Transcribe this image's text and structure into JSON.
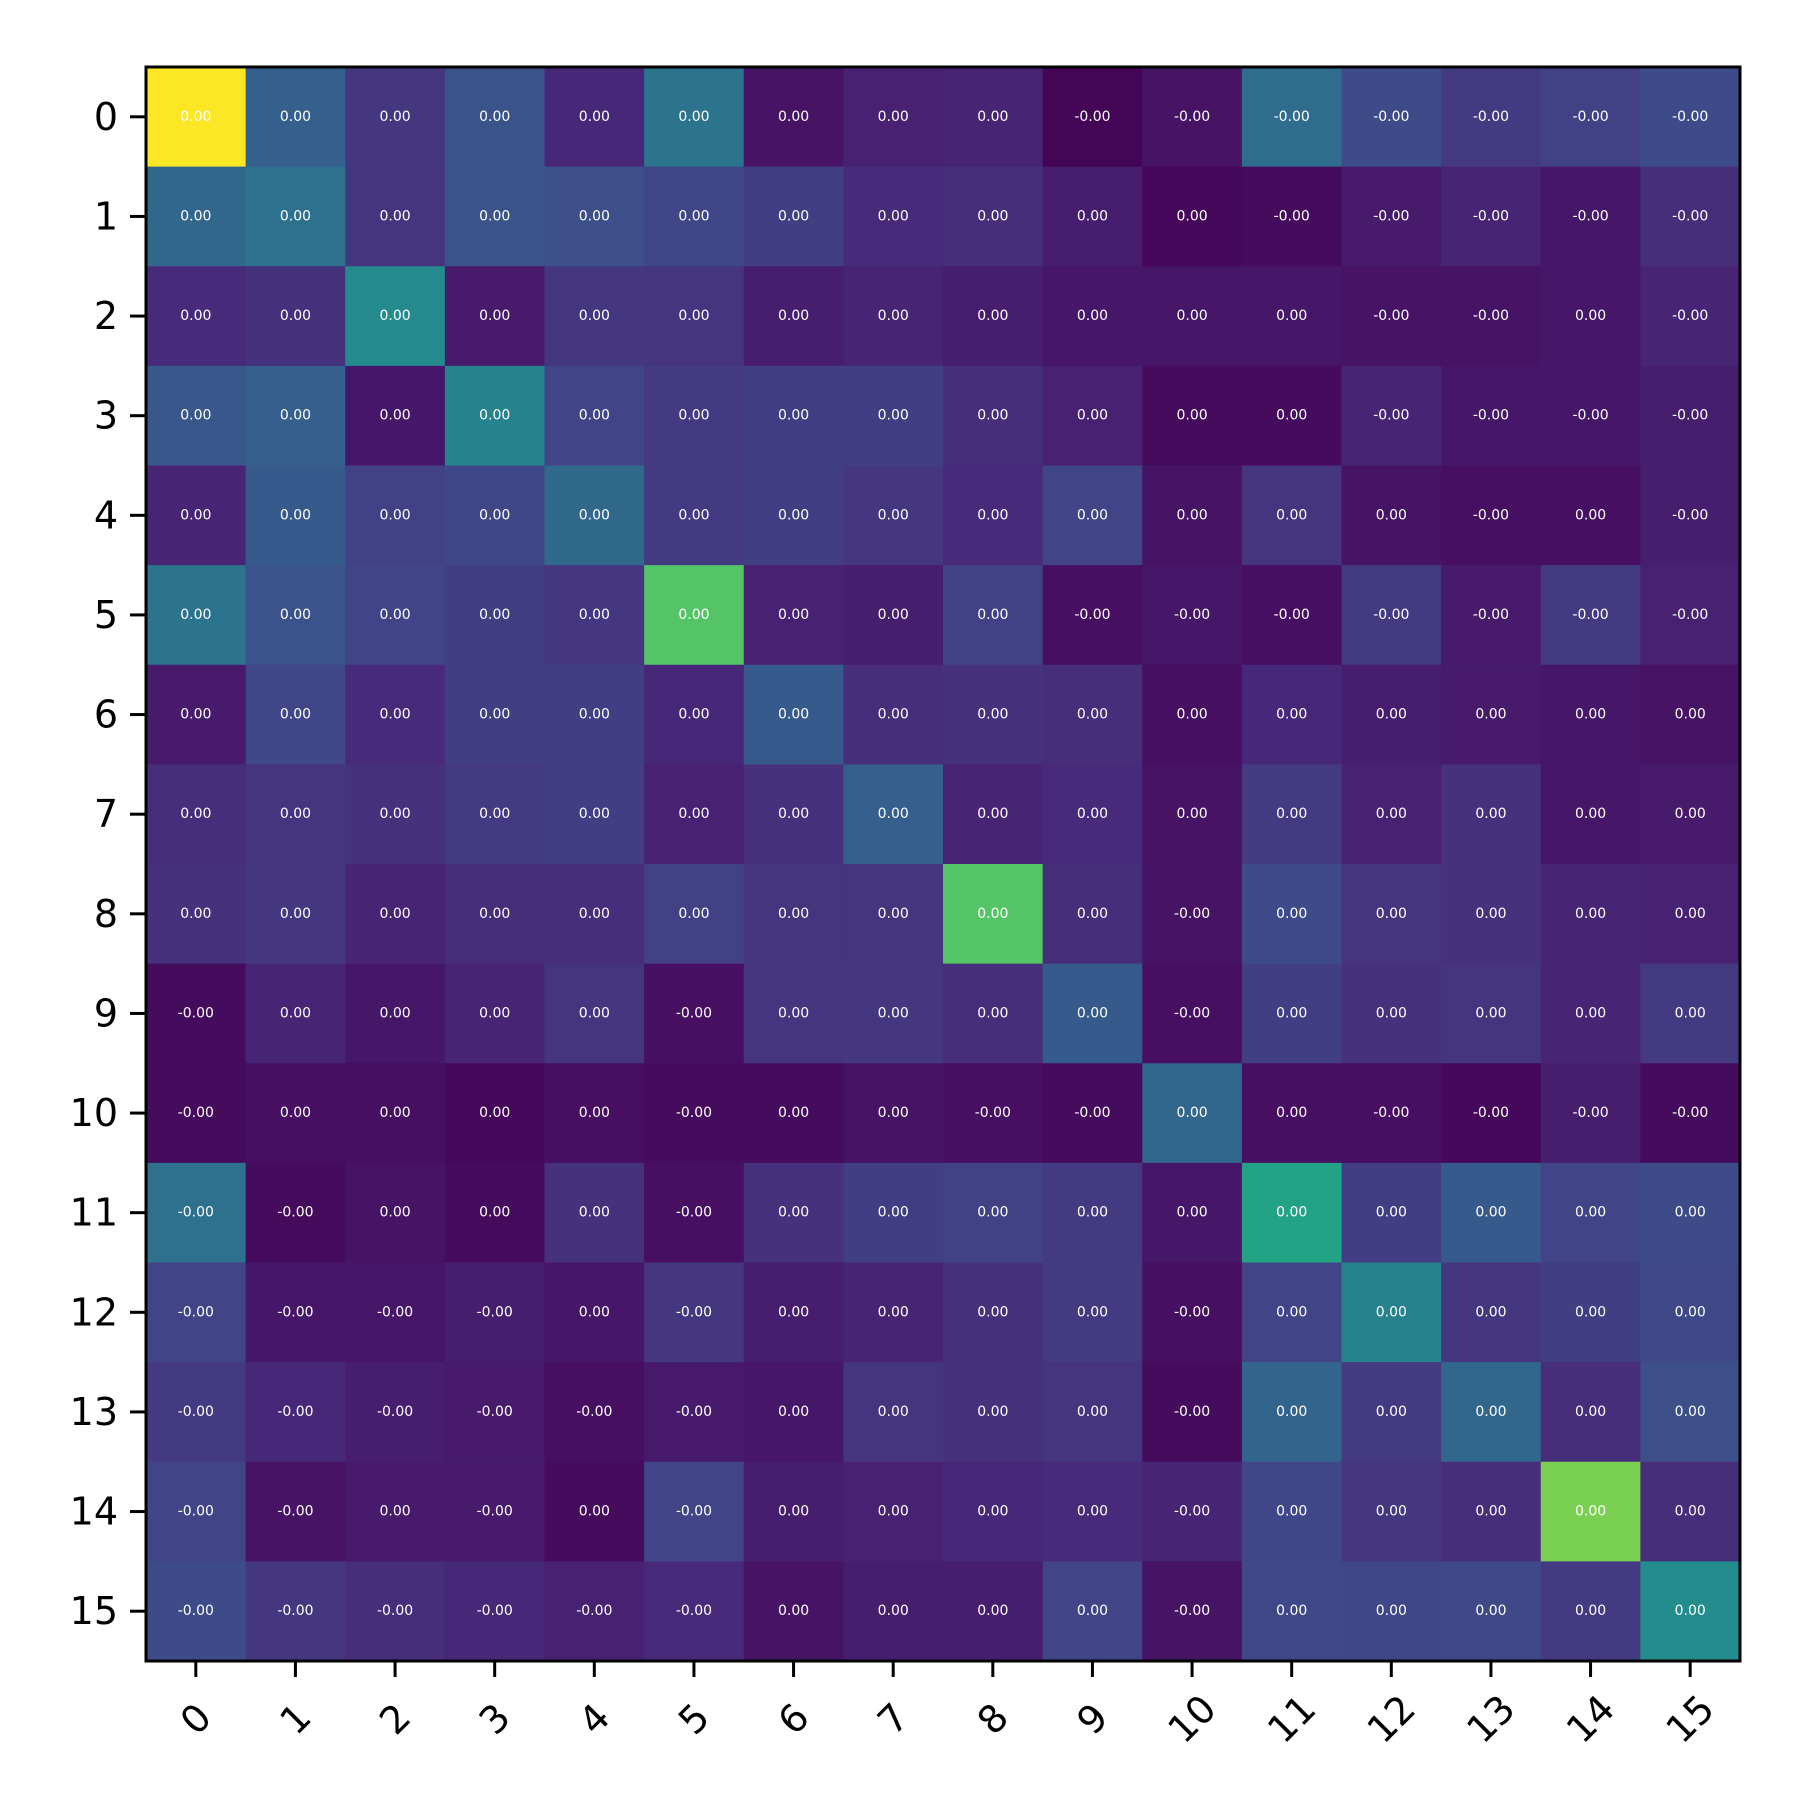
{
  "chart_data": {
    "type": "heatmap",
    "title": "",
    "xlabel": "",
    "ylabel": "",
    "x_ticks": [
      "0",
      "1",
      "2",
      "3",
      "4",
      "5",
      "6",
      "7",
      "8",
      "9",
      "10",
      "11",
      "12",
      "13",
      "14",
      "15"
    ],
    "y_ticks": [
      "0",
      "1",
      "2",
      "3",
      "4",
      "5",
      "6",
      "7",
      "8",
      "9",
      "10",
      "11",
      "12",
      "13",
      "14",
      "15"
    ],
    "colormap": "viridis",
    "grid": false,
    "cell_labels": [
      [
        "0.00",
        "0.00",
        "0.00",
        "0.00",
        "0.00",
        "0.00",
        "0.00",
        "0.00",
        "0.00",
        "-0.00",
        "-0.00",
        "-0.00",
        "-0.00",
        "-0.00",
        "-0.00",
        "-0.00"
      ],
      [
        "0.00",
        "0.00",
        "0.00",
        "0.00",
        "0.00",
        "0.00",
        "0.00",
        "0.00",
        "0.00",
        "0.00",
        "0.00",
        "-0.00",
        "-0.00",
        "-0.00",
        "-0.00",
        "-0.00"
      ],
      [
        "0.00",
        "0.00",
        "0.00",
        "0.00",
        "0.00",
        "0.00",
        "0.00",
        "0.00",
        "0.00",
        "0.00",
        "0.00",
        "0.00",
        "-0.00",
        "-0.00",
        "0.00",
        "-0.00"
      ],
      [
        "0.00",
        "0.00",
        "0.00",
        "0.00",
        "0.00",
        "0.00",
        "0.00",
        "0.00",
        "0.00",
        "0.00",
        "0.00",
        "0.00",
        "-0.00",
        "-0.00",
        "-0.00",
        "-0.00"
      ],
      [
        "0.00",
        "0.00",
        "0.00",
        "0.00",
        "0.00",
        "0.00",
        "0.00",
        "0.00",
        "0.00",
        "0.00",
        "0.00",
        "0.00",
        "0.00",
        "-0.00",
        "0.00",
        "-0.00"
      ],
      [
        "0.00",
        "0.00",
        "0.00",
        "0.00",
        "0.00",
        "0.00",
        "0.00",
        "0.00",
        "0.00",
        "-0.00",
        "-0.00",
        "-0.00",
        "-0.00",
        "-0.00",
        "-0.00",
        "-0.00"
      ],
      [
        "0.00",
        "0.00",
        "0.00",
        "0.00",
        "0.00",
        "0.00",
        "0.00",
        "0.00",
        "0.00",
        "0.00",
        "0.00",
        "0.00",
        "0.00",
        "0.00",
        "0.00",
        "0.00"
      ],
      [
        "0.00",
        "0.00",
        "0.00",
        "0.00",
        "0.00",
        "0.00",
        "0.00",
        "0.00",
        "0.00",
        "0.00",
        "0.00",
        "0.00",
        "0.00",
        "0.00",
        "0.00",
        "0.00"
      ],
      [
        "0.00",
        "0.00",
        "0.00",
        "0.00",
        "0.00",
        "0.00",
        "0.00",
        "0.00",
        "0.00",
        "0.00",
        "-0.00",
        "0.00",
        "0.00",
        "0.00",
        "0.00",
        "0.00"
      ],
      [
        "-0.00",
        "0.00",
        "0.00",
        "0.00",
        "0.00",
        "-0.00",
        "0.00",
        "0.00",
        "0.00",
        "0.00",
        "-0.00",
        "0.00",
        "0.00",
        "0.00",
        "0.00",
        "0.00"
      ],
      [
        "-0.00",
        "0.00",
        "0.00",
        "0.00",
        "0.00",
        "-0.00",
        "0.00",
        "0.00",
        "-0.00",
        "-0.00",
        "0.00",
        "0.00",
        "-0.00",
        "-0.00",
        "-0.00",
        "-0.00"
      ],
      [
        "-0.00",
        "-0.00",
        "0.00",
        "0.00",
        "0.00",
        "-0.00",
        "0.00",
        "0.00",
        "0.00",
        "0.00",
        "0.00",
        "0.00",
        "0.00",
        "0.00",
        "0.00",
        "0.00"
      ],
      [
        "-0.00",
        "-0.00",
        "-0.00",
        "-0.00",
        "0.00",
        "-0.00",
        "0.00",
        "0.00",
        "0.00",
        "0.00",
        "-0.00",
        "0.00",
        "0.00",
        "0.00",
        "0.00",
        "0.00"
      ],
      [
        "-0.00",
        "-0.00",
        "-0.00",
        "-0.00",
        "-0.00",
        "-0.00",
        "0.00",
        "0.00",
        "0.00",
        "0.00",
        "-0.00",
        "0.00",
        "0.00",
        "0.00",
        "0.00",
        "0.00"
      ],
      [
        "-0.00",
        "-0.00",
        "0.00",
        "-0.00",
        "0.00",
        "-0.00",
        "0.00",
        "0.00",
        "0.00",
        "0.00",
        "-0.00",
        "0.00",
        "0.00",
        "0.00",
        "0.00",
        "0.00"
      ],
      [
        "-0.00",
        "-0.00",
        "-0.00",
        "-0.00",
        "-0.00",
        "-0.00",
        "0.00",
        "0.00",
        "0.00",
        "0.00",
        "-0.00",
        "0.00",
        "0.00",
        "0.00",
        "0.00",
        "0.00"
      ]
    ],
    "color_levels": [
      [
        1.0,
        0.3,
        0.16,
        0.26,
        0.11,
        0.38,
        0.05,
        0.09,
        0.1,
        0.01,
        0.05,
        0.35,
        0.23,
        0.17,
        0.19,
        0.23
      ],
      [
        0.33,
        0.37,
        0.15,
        0.26,
        0.24,
        0.21,
        0.18,
        0.12,
        0.13,
        0.08,
        0.02,
        0.03,
        0.07,
        0.1,
        0.06,
        0.13
      ],
      [
        0.12,
        0.14,
        0.47,
        0.07,
        0.16,
        0.15,
        0.08,
        0.1,
        0.08,
        0.06,
        0.06,
        0.06,
        0.05,
        0.05,
        0.06,
        0.1
      ],
      [
        0.27,
        0.3,
        0.06,
        0.44,
        0.2,
        0.17,
        0.18,
        0.18,
        0.13,
        0.09,
        0.03,
        0.03,
        0.1,
        0.06,
        0.06,
        0.08
      ],
      [
        0.1,
        0.28,
        0.19,
        0.21,
        0.34,
        0.17,
        0.18,
        0.16,
        0.12,
        0.2,
        0.05,
        0.15,
        0.05,
        0.04,
        0.04,
        0.08
      ],
      [
        0.38,
        0.25,
        0.2,
        0.18,
        0.16,
        0.73,
        0.09,
        0.08,
        0.19,
        0.04,
        0.06,
        0.04,
        0.17,
        0.07,
        0.17,
        0.09
      ],
      [
        0.07,
        0.21,
        0.12,
        0.18,
        0.18,
        0.11,
        0.28,
        0.13,
        0.14,
        0.13,
        0.04,
        0.11,
        0.08,
        0.07,
        0.06,
        0.05
      ],
      [
        0.13,
        0.15,
        0.14,
        0.17,
        0.18,
        0.09,
        0.14,
        0.3,
        0.1,
        0.12,
        0.05,
        0.17,
        0.09,
        0.14,
        0.06,
        0.07
      ],
      [
        0.14,
        0.16,
        0.1,
        0.13,
        0.13,
        0.19,
        0.15,
        0.15,
        0.73,
        0.13,
        0.05,
        0.23,
        0.15,
        0.14,
        0.1,
        0.09
      ],
      [
        0.03,
        0.1,
        0.06,
        0.1,
        0.15,
        0.04,
        0.15,
        0.16,
        0.13,
        0.28,
        0.04,
        0.18,
        0.14,
        0.15,
        0.1,
        0.17
      ],
      [
        0.03,
        0.04,
        0.04,
        0.02,
        0.04,
        0.03,
        0.03,
        0.05,
        0.04,
        0.03,
        0.33,
        0.04,
        0.04,
        0.02,
        0.08,
        0.03
      ],
      [
        0.37,
        0.03,
        0.05,
        0.03,
        0.14,
        0.04,
        0.14,
        0.18,
        0.19,
        0.17,
        0.06,
        0.58,
        0.18,
        0.28,
        0.2,
        0.23
      ],
      [
        0.2,
        0.06,
        0.06,
        0.08,
        0.06,
        0.16,
        0.08,
        0.1,
        0.14,
        0.17,
        0.04,
        0.2,
        0.44,
        0.16,
        0.18,
        0.22
      ],
      [
        0.17,
        0.11,
        0.08,
        0.07,
        0.04,
        0.07,
        0.06,
        0.15,
        0.14,
        0.15,
        0.03,
        0.32,
        0.17,
        0.33,
        0.13,
        0.24
      ],
      [
        0.2,
        0.05,
        0.07,
        0.07,
        0.03,
        0.2,
        0.08,
        0.09,
        0.11,
        0.12,
        0.1,
        0.21,
        0.16,
        0.13,
        0.8,
        0.13
      ],
      [
        0.23,
        0.16,
        0.13,
        0.11,
        0.09,
        0.12,
        0.05,
        0.08,
        0.08,
        0.2,
        0.05,
        0.22,
        0.21,
        0.22,
        0.17,
        0.48
      ]
    ]
  }
}
